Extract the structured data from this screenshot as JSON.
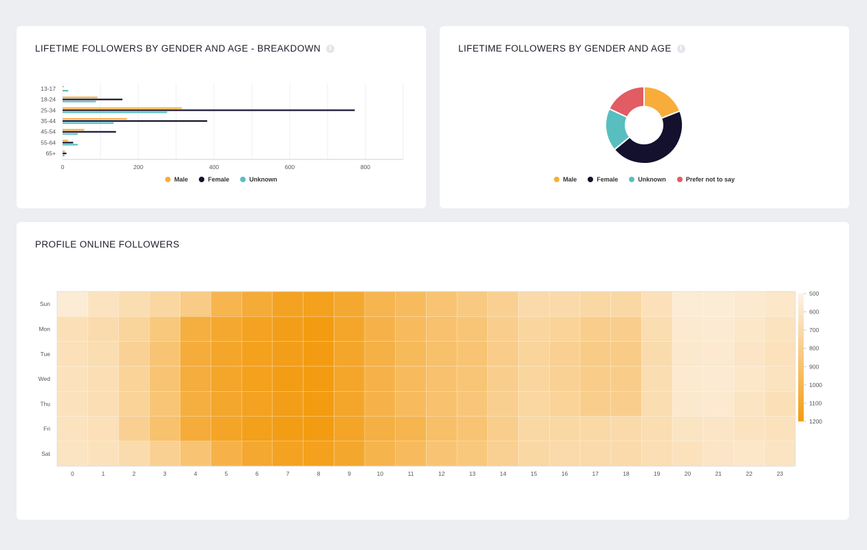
{
  "panels": {
    "breakdown": {
      "title": "LIFETIME FOLLOWERS BY GENDER AND AGE - BREAKDOWN"
    },
    "donut": {
      "title": "LIFETIME FOLLOWERS BY GENDER AND AGE"
    },
    "heatmap": {
      "title": "PROFILE ONLINE FOLLOWERS"
    }
  },
  "icons": {
    "info": "info-icon"
  },
  "colors": {
    "male": "#f8ad3a",
    "female": "#14112e",
    "unknown": "#58bec0",
    "prefer_not": "#e15c63",
    "heat_low": "#fdf3e7",
    "heat_high": "#f39c12"
  },
  "chart_data": [
    {
      "type": "bar",
      "orientation": "horizontal",
      "title": "LIFETIME FOLLOWERS BY GENDER AND AGE - BREAKDOWN",
      "categories": [
        "13-17",
        "18-24",
        "25-34",
        "35-44",
        "45-54",
        "55-64",
        "65+"
      ],
      "series": [
        {
          "name": "Male",
          "values": [
            3,
            92,
            315,
            170,
            57,
            14,
            6
          ]
        },
        {
          "name": "Female",
          "values": [
            0,
            158,
            772,
            382,
            141,
            28,
            10
          ]
        },
        {
          "name": "Unknown",
          "values": [
            15,
            88,
            276,
            135,
            40,
            40,
            5
          ]
        }
      ],
      "xticks": [
        0,
        200,
        400,
        600,
        800
      ],
      "xlim": [
        0,
        900
      ],
      "legend": "bottom"
    },
    {
      "type": "pie",
      "style": "donut",
      "title": "LIFETIME FOLLOWERS BY GENDER AND AGE",
      "labels": [
        "Male",
        "Female",
        "Unknown",
        "Prefer not to say"
      ],
      "values": [
        19,
        45,
        18,
        18
      ],
      "legend": "bottom"
    },
    {
      "type": "heatmap",
      "title": "PROFILE ONLINE FOLLOWERS",
      "rows": [
        "Sun",
        "Mon",
        "Tue",
        "Wed",
        "Thu",
        "Fri",
        "Sat"
      ],
      "columns": [
        "0",
        "1",
        "2",
        "3",
        "4",
        "5",
        "6",
        "7",
        "8",
        "9",
        "10",
        "11",
        "12",
        "13",
        "14",
        "15",
        "16",
        "17",
        "18",
        "19",
        "20",
        "21",
        "22",
        "23"
      ],
      "values": [
        [
          560,
          630,
          680,
          730,
          820,
          1000,
          1080,
          1150,
          1160,
          1100,
          1000,
          950,
          880,
          840,
          780,
          700,
          700,
          720,
          720,
          650,
          560,
          560,
          580,
          600
        ],
        [
          660,
          690,
          750,
          850,
          1050,
          1100,
          1150,
          1180,
          1200,
          1120,
          1020,
          950,
          900,
          870,
          800,
          740,
          760,
          800,
          800,
          680,
          580,
          570,
          600,
          630
        ],
        [
          650,
          680,
          770,
          880,
          1070,
          1120,
          1160,
          1180,
          1200,
          1120,
          1030,
          960,
          910,
          880,
          810,
          750,
          780,
          820,
          820,
          690,
          590,
          580,
          610,
          640
        ],
        [
          640,
          670,
          760,
          880,
          1060,
          1120,
          1160,
          1190,
          1210,
          1120,
          1020,
          950,
          900,
          870,
          800,
          740,
          770,
          810,
          810,
          680,
          580,
          570,
          600,
          630
        ],
        [
          640,
          670,
          760,
          870,
          1050,
          1110,
          1150,
          1180,
          1200,
          1120,
          1020,
          950,
          900,
          860,
          790,
          730,
          760,
          800,
          800,
          680,
          590,
          580,
          620,
          660
        ],
        [
          630,
          650,
          780,
          900,
          1070,
          1130,
          1170,
          1190,
          1210,
          1130,
          1040,
          1000,
          920,
          880,
          800,
          720,
          720,
          710,
          700,
          680,
          620,
          610,
          630,
          640
        ],
        [
          620,
          640,
          690,
          780,
          880,
          1020,
          1100,
          1150,
          1160,
          1110,
          1010,
          950,
          880,
          850,
          780,
          720,
          700,
          700,
          700,
          670,
          640,
          610,
          600,
          620
        ]
      ],
      "color_scale": [
        500,
        600,
        700,
        800,
        900,
        1000,
        1100,
        1200
      ]
    }
  ]
}
